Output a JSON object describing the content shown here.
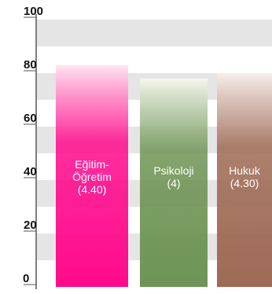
{
  "chart_data": {
    "type": "bar",
    "categories": [
      "Eğitim-Öğretim (4.40)",
      "Psikoloji (4)",
      "Hukuk (4.30)"
    ],
    "label_lines": [
      [
        "Eğitim-",
        "Öğretim",
        "(4.40)"
      ],
      [
        "Psikoloji",
        "(4)"
      ],
      [
        "Hukuk",
        "(4.30)"
      ]
    ],
    "values": [
      83,
      78,
      80
    ],
    "ylim": [
      0,
      100
    ],
    "yticks": [
      "0",
      "20",
      "40",
      "60",
      "80",
      "100"
    ],
    "colors": {
      "bar_tops": [
        "#ffe6f2",
        "#f4f7ee",
        "#f7efec"
      ],
      "bar_bottoms": [
        "#ff0a8c",
        "#6e9455",
        "#9e6a55"
      ],
      "band": "#e5e5e5",
      "axis": "#555555"
    },
    "grid": true,
    "xlabel": "",
    "ylabel": "",
    "title": ""
  }
}
